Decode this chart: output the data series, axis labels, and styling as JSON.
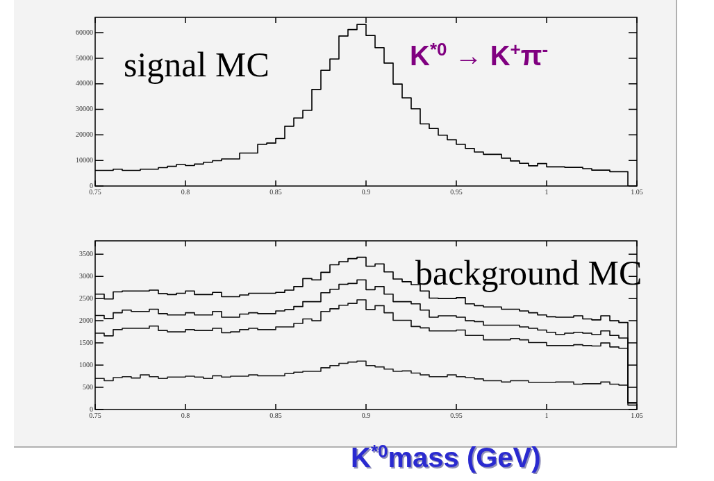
{
  "chart_data": [
    {
      "type": "histogram",
      "annotations": [
        "signal MC",
        "K$^{*0}$ → K$^{+}$π$^{-}$"
      ],
      "bins": [
        0.75,
        0.755,
        0.76,
        0.765,
        0.77,
        0.775,
        0.78,
        0.785,
        0.79,
        0.795,
        0.8,
        0.805,
        0.81,
        0.815,
        0.82,
        0.825,
        0.83,
        0.835,
        0.84,
        0.845,
        0.85,
        0.855,
        0.86,
        0.865,
        0.87,
        0.875,
        0.88,
        0.885,
        0.89,
        0.895,
        0.9,
        0.905,
        0.91,
        0.915,
        0.92,
        0.925,
        0.93,
        0.935,
        0.94,
        0.945,
        0.95,
        0.955,
        0.96,
        0.965,
        0.97,
        0.975,
        0.98,
        0.985,
        0.99,
        0.995,
        1,
        1.005,
        1.01,
        1.015,
        1.02,
        1.025,
        1.03,
        1.035,
        1.04,
        1.045,
        1.05
      ],
      "series": [
        {
          "color": "#000000",
          "values": [
            6100,
            6100,
            6600,
            6100,
            6100,
            6600,
            6600,
            7200,
            7700,
            8400,
            8000,
            8600,
            9300,
            9900,
            10600,
            10600,
            12900,
            12900,
            16300,
            16800,
            18600,
            23400,
            26600,
            29600,
            37800,
            45300,
            49700,
            58700,
            61200,
            63200,
            58900,
            54100,
            48100,
            39900,
            34500,
            30200,
            24300,
            22500,
            19900,
            18100,
            16300,
            14700,
            13300,
            12400,
            12400,
            10900,
            9800,
            8900,
            7900,
            8800,
            7500,
            7500,
            7300,
            7300,
            6800,
            6200,
            6200,
            5600,
            5600,
            0
          ]
        }
      ],
      "xlim": [
        0.75,
        1.05
      ],
      "xticks": [
        0.75,
        0.8,
        0.85,
        0.9,
        0.95,
        1,
        1.05
      ],
      "ylim": [
        0,
        66000
      ],
      "yticks": [
        0,
        10000,
        20000,
        30000,
        40000,
        50000,
        60000
      ],
      "grid": false,
      "legend": false
    },
    {
      "type": "histogram",
      "xlabel": "K$^{*0}$mass (GeV)",
      "annotations": [
        "background MC"
      ],
      "bins": [
        0.75,
        0.755,
        0.76,
        0.765,
        0.77,
        0.775,
        0.78,
        0.785,
        0.79,
        0.795,
        0.8,
        0.805,
        0.81,
        0.815,
        0.82,
        0.825,
        0.83,
        0.835,
        0.84,
        0.845,
        0.85,
        0.855,
        0.86,
        0.865,
        0.87,
        0.875,
        0.88,
        0.885,
        0.89,
        0.895,
        0.9,
        0.905,
        0.91,
        0.915,
        0.92,
        0.925,
        0.93,
        0.935,
        0.94,
        0.945,
        0.95,
        0.955,
        0.96,
        0.965,
        0.97,
        0.975,
        0.98,
        0.985,
        0.99,
        0.995,
        1,
        1.005,
        1.01,
        1.015,
        1.02,
        1.025,
        1.03,
        1.035,
        1.04,
        1.045,
        1.05
      ],
      "series": [
        {
          "color": "#000000",
          "values": [
            2600,
            2490,
            2650,
            2670,
            2670,
            2670,
            2690,
            2610,
            2590,
            2620,
            2670,
            2590,
            2590,
            2640,
            2540,
            2540,
            2580,
            2620,
            2620,
            2620,
            2640,
            2690,
            2770,
            2950,
            2920,
            3090,
            3260,
            3330,
            3400,
            3430,
            3230,
            3280,
            3100,
            2940,
            2880,
            2810,
            2670,
            2510,
            2500,
            2500,
            2520,
            2380,
            2340,
            2310,
            2310,
            2260,
            2260,
            2220,
            2180,
            2130,
            2090,
            2080,
            2080,
            2110,
            2040,
            2020,
            2110,
            2000,
            1960,
            150
          ]
        },
        {
          "color": "#0a0a0a",
          "values": [
            2120,
            2050,
            2180,
            2240,
            2210,
            2210,
            2260,
            2160,
            2130,
            2130,
            2180,
            2130,
            2130,
            2210,
            2080,
            2080,
            2150,
            2180,
            2160,
            2160,
            2220,
            2250,
            2320,
            2430,
            2430,
            2630,
            2710,
            2820,
            2840,
            2920,
            2700,
            2770,
            2600,
            2430,
            2430,
            2380,
            2240,
            2080,
            2110,
            2110,
            2080,
            2000,
            1980,
            1900,
            1900,
            1900,
            1900,
            1860,
            1830,
            1790,
            1740,
            1690,
            1720,
            1740,
            1720,
            1690,
            1770,
            1670,
            1610,
            150
          ]
        },
        {
          "color": "#141414",
          "values": [
            1720,
            1660,
            1800,
            1830,
            1830,
            1830,
            1880,
            1780,
            1750,
            1750,
            1800,
            1780,
            1780,
            1830,
            1730,
            1750,
            1800,
            1830,
            1800,
            1800,
            1860,
            1860,
            1940,
            2040,
            2000,
            2210,
            2270,
            2350,
            2390,
            2470,
            2250,
            2340,
            2180,
            2010,
            2010,
            1870,
            1840,
            1770,
            1770,
            1770,
            1790,
            1670,
            1670,
            1570,
            1570,
            1570,
            1600,
            1570,
            1510,
            1510,
            1440,
            1440,
            1440,
            1460,
            1440,
            1430,
            1500,
            1410,
            1380,
            150
          ]
        },
        {
          "color": "#1e1e1e",
          "values": [
            700,
            650,
            720,
            740,
            710,
            780,
            740,
            700,
            730,
            730,
            750,
            730,
            700,
            760,
            730,
            750,
            750,
            780,
            760,
            760,
            760,
            810,
            840,
            860,
            860,
            940,
            990,
            1040,
            1070,
            1090,
            990,
            960,
            910,
            860,
            870,
            820,
            780,
            740,
            740,
            780,
            740,
            720,
            690,
            650,
            650,
            620,
            650,
            650,
            610,
            610,
            610,
            620,
            620,
            570,
            580,
            580,
            620,
            570,
            550,
            100
          ]
        }
      ],
      "xlim": [
        0.75,
        1.05
      ],
      "xticks": [
        0.75,
        0.8,
        0.85,
        0.9,
        0.95,
        1,
        1.05
      ],
      "ylim": [
        0,
        3800
      ],
      "yticks": [
        0,
        500,
        1000,
        1500,
        2000,
        2500,
        3000,
        3500
      ],
      "grid": false,
      "legend": false
    }
  ]
}
